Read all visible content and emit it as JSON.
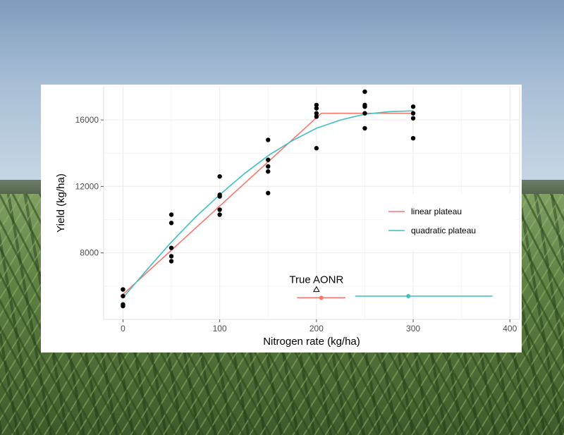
{
  "chart_data": {
    "type": "scatter",
    "xlabel": "Nitrogen rate (kg/ha)",
    "ylabel": "Yield (kg/ha)",
    "xlim": [
      -20,
      410
    ],
    "ylim": [
      4000,
      18000
    ],
    "x_ticks": [
      0,
      100,
      200,
      300,
      400
    ],
    "y_ticks": [
      8000,
      12000,
      16000
    ],
    "grid": true,
    "points": [
      {
        "x": 0,
        "y": 5800
      },
      {
        "x": 0,
        "y": 5400
      },
      {
        "x": 0,
        "y": 4900
      },
      {
        "x": 0,
        "y": 4800
      },
      {
        "x": 50,
        "y": 10300
      },
      {
        "x": 50,
        "y": 9800
      },
      {
        "x": 50,
        "y": 8300
      },
      {
        "x": 50,
        "y": 7800
      },
      {
        "x": 50,
        "y": 7500
      },
      {
        "x": 100,
        "y": 12600
      },
      {
        "x": 100,
        "y": 11500
      },
      {
        "x": 100,
        "y": 11400
      },
      {
        "x": 100,
        "y": 10600
      },
      {
        "x": 100,
        "y": 10300
      },
      {
        "x": 150,
        "y": 14800
      },
      {
        "x": 150,
        "y": 13600
      },
      {
        "x": 150,
        "y": 13200
      },
      {
        "x": 150,
        "y": 12900
      },
      {
        "x": 150,
        "y": 11600
      },
      {
        "x": 200,
        "y": 16900
      },
      {
        "x": 200,
        "y": 16700
      },
      {
        "x": 200,
        "y": 16400
      },
      {
        "x": 200,
        "y": 16200
      },
      {
        "x": 200,
        "y": 14300
      },
      {
        "x": 250,
        "y": 17700
      },
      {
        "x": 250,
        "y": 16900
      },
      {
        "x": 250,
        "y": 16800
      },
      {
        "x": 250,
        "y": 16400
      },
      {
        "x": 250,
        "y": 15500
      },
      {
        "x": 300,
        "y": 16800
      },
      {
        "x": 300,
        "y": 16400
      },
      {
        "x": 300,
        "y": 16100
      },
      {
        "x": 300,
        "y": 14900
      }
    ],
    "series": [
      {
        "name": "linear plateau",
        "color": "#f8766d",
        "x": [
          0,
          205,
          300
        ],
        "y": [
          5500,
          16400,
          16400
        ]
      },
      {
        "name": "quadratic plateau",
        "color": "#3fbfc4",
        "x": [
          0,
          25,
          50,
          75,
          100,
          125,
          150,
          175,
          200,
          225,
          250,
          275,
          300
        ],
        "y": [
          5300,
          7000,
          8650,
          10150,
          11500,
          12750,
          13850,
          14750,
          15500,
          16000,
          16350,
          16500,
          16550
        ]
      }
    ],
    "aonr_estimates": [
      {
        "series": "linear plateau",
        "color": "#f8766d",
        "estimate": 205,
        "low": 180,
        "high": 230,
        "y": 5300
      },
      {
        "series": "quadratic plateau",
        "color": "#3fbfc4",
        "estimate": 295,
        "low": 240,
        "high": 382,
        "y": 5400
      }
    ],
    "true_aonr": {
      "label": "True AONR",
      "x": 200,
      "y": 5800
    },
    "legend": {
      "position": "right",
      "entries": [
        {
          "label": "linear plateau",
          "color": "#f8766d"
        },
        {
          "label": "quadratic plateau",
          "color": "#3fbfc4"
        }
      ]
    }
  }
}
